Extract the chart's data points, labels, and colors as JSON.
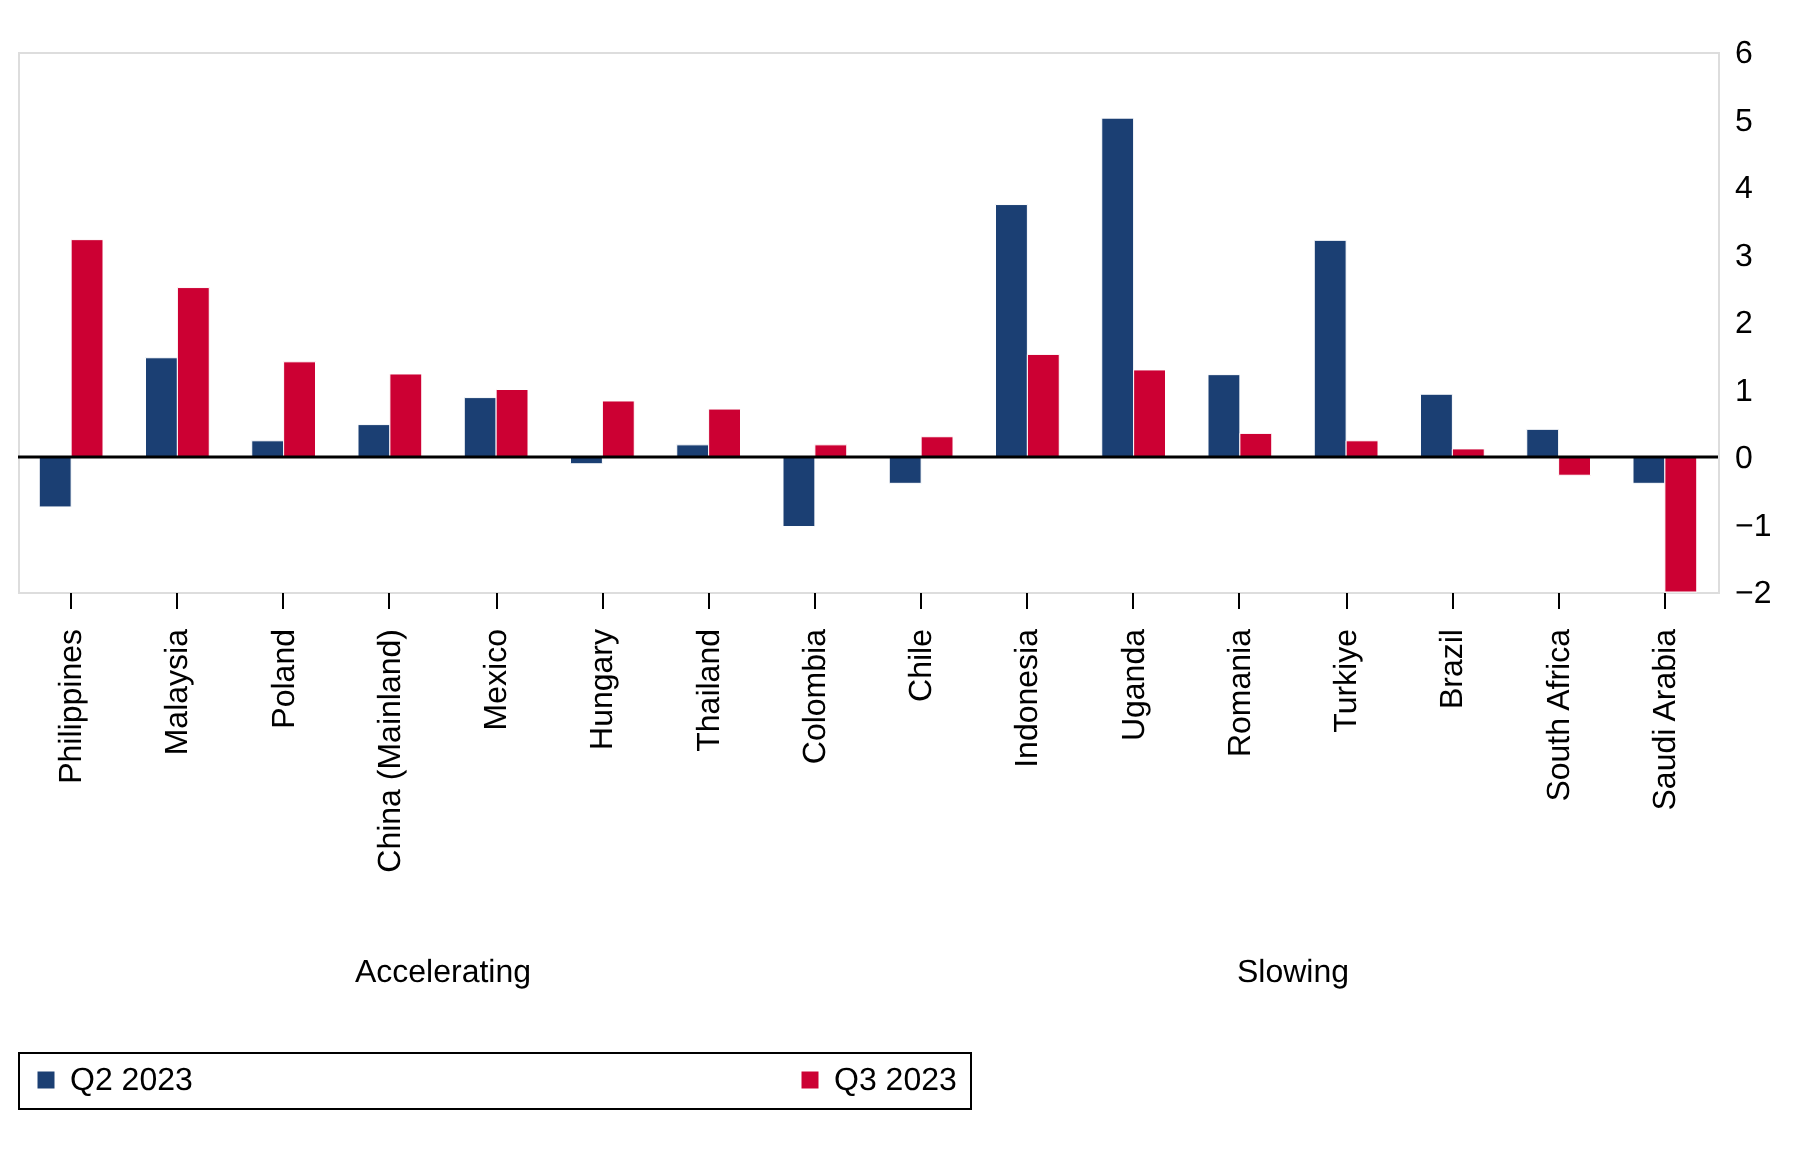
{
  "chart_data": {
    "type": "bar",
    "categories": [
      "Philippines",
      "Malaysia",
      "Poland",
      "China (Mainland)",
      "Mexico",
      "Hungary",
      "Thailand",
      "Colombia",
      "Chile",
      "Indonesia",
      "Uganda",
      "Romania",
      "Turkiye",
      "Brazil",
      "South Africa",
      "Saudi Arabia"
    ],
    "series": [
      {
        "name": "Q2 2023",
        "color": "#1b3f73",
        "values": [
          -0.74,
          1.47,
          0.24,
          0.48,
          0.88,
          -0.1,
          0.18,
          -1.03,
          -0.39,
          3.74,
          5.02,
          1.22,
          3.21,
          0.93,
          0.41,
          -0.39
        ]
      },
      {
        "name": "Q3 2023",
        "color": "#cc0033",
        "values": [
          3.22,
          2.51,
          1.41,
          1.23,
          1.0,
          0.83,
          0.71,
          0.18,
          0.3,
          1.52,
          1.29,
          0.35,
          0.24,
          0.12,
          -0.27,
          -2.0
        ]
      }
    ],
    "ylim": [
      -2,
      6
    ],
    "yticks": [
      -2,
      -1,
      0,
      1,
      2,
      3,
      4,
      5,
      6
    ],
    "ref_lines": [
      {
        "axis": "y",
        "value": 0
      }
    ],
    "annotations": [
      "Accelerating",
      "Slowing"
    ],
    "grid": false,
    "legend": "bottom"
  }
}
